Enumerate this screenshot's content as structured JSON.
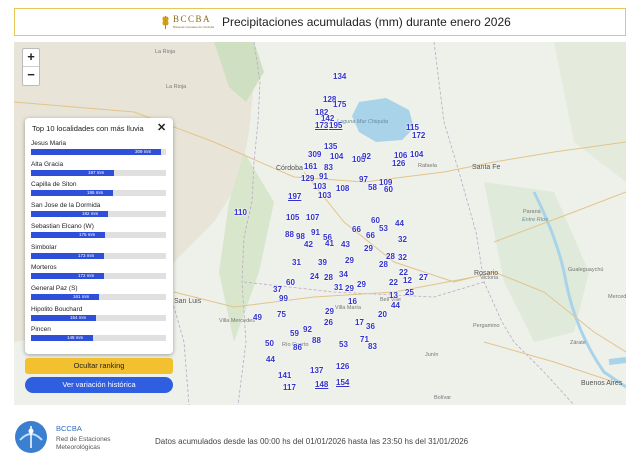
{
  "header": {
    "logo_text": "BCCBA",
    "logo_subtitle": "Bolsa de Cereales de Córdoba",
    "title": "Precipitaciones acumuladas (mm) durante enero 2026"
  },
  "zoom": {
    "in_label": "+",
    "out_label": "−"
  },
  "ranking_panel": {
    "title": "Top 10 localidades con más lluvia",
    "close_label": "✕",
    "scale_max_mm": 320,
    "items": [
      {
        "name": "Jesus Maria",
        "value_mm": 309,
        "value_label": "309 mm"
      },
      {
        "name": "Alta Gracia",
        "value_mm": 197,
        "value_label": "197 mm"
      },
      {
        "name": "Capilla de Siton",
        "value_mm": 195,
        "value_label": "195 mm"
      },
      {
        "name": "San Jose de la Dormida",
        "value_mm": 182,
        "value_label": "182 mm"
      },
      {
        "name": "Sebastian Elcano (W)",
        "value_mm": 175,
        "value_label": "175 mm"
      },
      {
        "name": "Simbolar",
        "value_mm": 173,
        "value_label": "173 mm"
      },
      {
        "name": "Morteros",
        "value_mm": 172,
        "value_label": "172 mm"
      },
      {
        "name": "General Paz (S)",
        "value_mm": 161,
        "value_label": "161 mm"
      },
      {
        "name": "Hipolito Bouchard",
        "value_mm": 154,
        "value_label": "154 mm"
      },
      {
        "name": "Pincen",
        "value_mm": 148,
        "value_label": "148 mm"
      }
    ]
  },
  "buttons": {
    "hide_ranking": "Ocultar ranking",
    "history": "Ver variación histórica"
  },
  "map": {
    "places": [
      "La Rioja",
      "La Rioja",
      "Laguna Mar Chiquita",
      "Córdoba",
      "Rafaela",
      "Santa Fe",
      "Paraná",
      "Entre Ríos",
      "Rosario",
      "San Luis",
      "Villa Mercedes",
      "Gualeguaychú",
      "Mercedes",
      "Zárate",
      "Pergamino",
      "Junín",
      "Buenos Aires",
      "Victoria",
      "Bolívar",
      "Bell Ville",
      "Villa María",
      "Río Cuarto"
    ],
    "stations": [
      "134",
      "128",
      "175",
      "182",
      "142",
      "173",
      "195",
      "115",
      "172",
      "135",
      "309",
      "104",
      "105",
      "92",
      "106",
      "104",
      "161",
      "83",
      "126",
      "129",
      "91",
      "97",
      "109",
      "103",
      "108",
      "58",
      "60",
      "197",
      "103",
      "105",
      "107",
      "60",
      "44",
      "110",
      "88",
      "98",
      "91",
      "56",
      "66",
      "53",
      "42",
      "41",
      "43",
      "66",
      "32",
      "29",
      "28",
      "39",
      "29",
      "28",
      "32",
      "31",
      "24",
      "28",
      "34",
      "22",
      "27",
      "60",
      "12",
      "29",
      "22",
      "37",
      "31",
      "29",
      "16",
      "13",
      "25",
      "99",
      "44",
      "75",
      "29",
      "26",
      "17",
      "36",
      "20",
      "49",
      "92",
      "59",
      "88",
      "71",
      "50",
      "86",
      "53",
      "83",
      "44",
      "141",
      "137",
      "126",
      "117",
      "148",
      "154"
    ]
  },
  "footer": {
    "brand": "BCCBA",
    "org": "Red de Estaciones Meteorológicas",
    "info": "Datos acumulados desde las 00:00 hs del 01/01/2026 hasta las 23:50 hs del 31/01/2026"
  },
  "colors": {
    "accent_gold": "#f3c12f",
    "accent_blue": "#2f5ee0",
    "bar_blue": "#2f4fd8",
    "station_blue": "#3333cc",
    "lake": "#a9d3e8"
  }
}
